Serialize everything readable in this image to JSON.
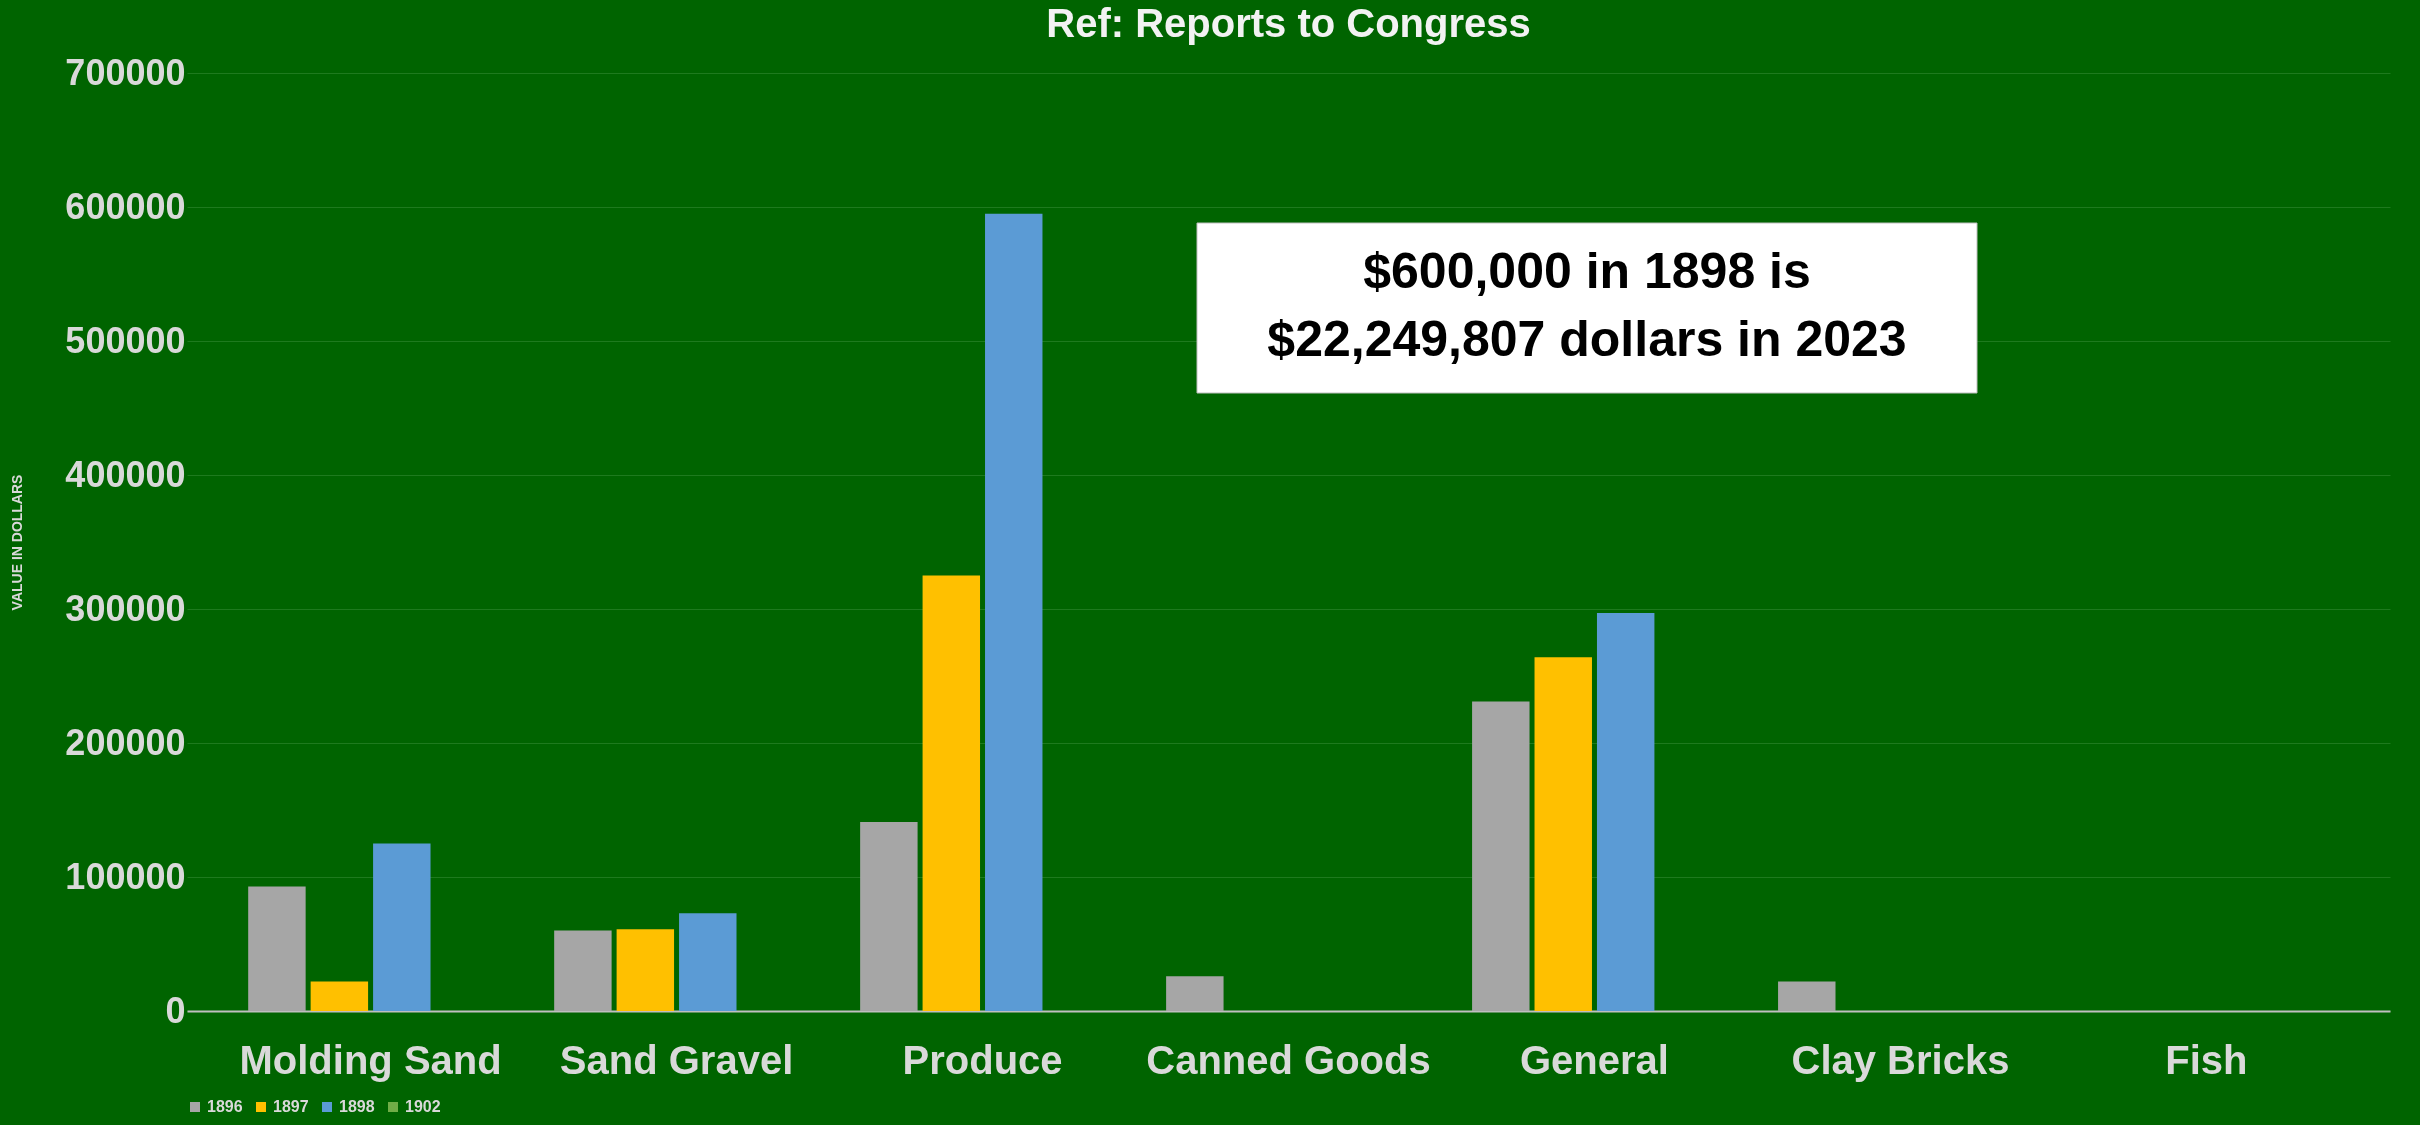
{
  "chart_data": {
    "type": "bar",
    "title": "Ref:  Reports to Congress",
    "ylabel": "VALUE   IN   DOLLARS",
    "categories": [
      "Molding Sand",
      "Sand Gravel",
      "Produce",
      "Canned Goods",
      "General",
      "Clay Bricks",
      "Fish"
    ],
    "series": [
      {
        "name": "1896",
        "color": "#a6a6a6",
        "values": [
          93000,
          60000,
          141000,
          26000,
          231000,
          22000,
          null
        ]
      },
      {
        "name": "1897",
        "color": "#ffc000",
        "values": [
          22000,
          61000,
          325000,
          null,
          264000,
          null,
          null
        ]
      },
      {
        "name": "1898",
        "color": "#5b9bd5",
        "values": [
          125000,
          73000,
          595000,
          null,
          297000,
          null,
          null
        ]
      },
      {
        "name": "1902",
        "color": "#70ad47",
        "values": [
          null,
          null,
          null,
          null,
          null,
          null,
          null
        ]
      }
    ],
    "ylim": [
      0,
      700000
    ],
    "yticks": [
      0,
      100000,
      200000,
      300000,
      400000,
      500000,
      600000,
      700000
    ],
    "grid": "y",
    "legend": "bottom",
    "annotations": [
      "$600,000 in 1898 is\n$22,249,807 dollars in 2023"
    ]
  }
}
